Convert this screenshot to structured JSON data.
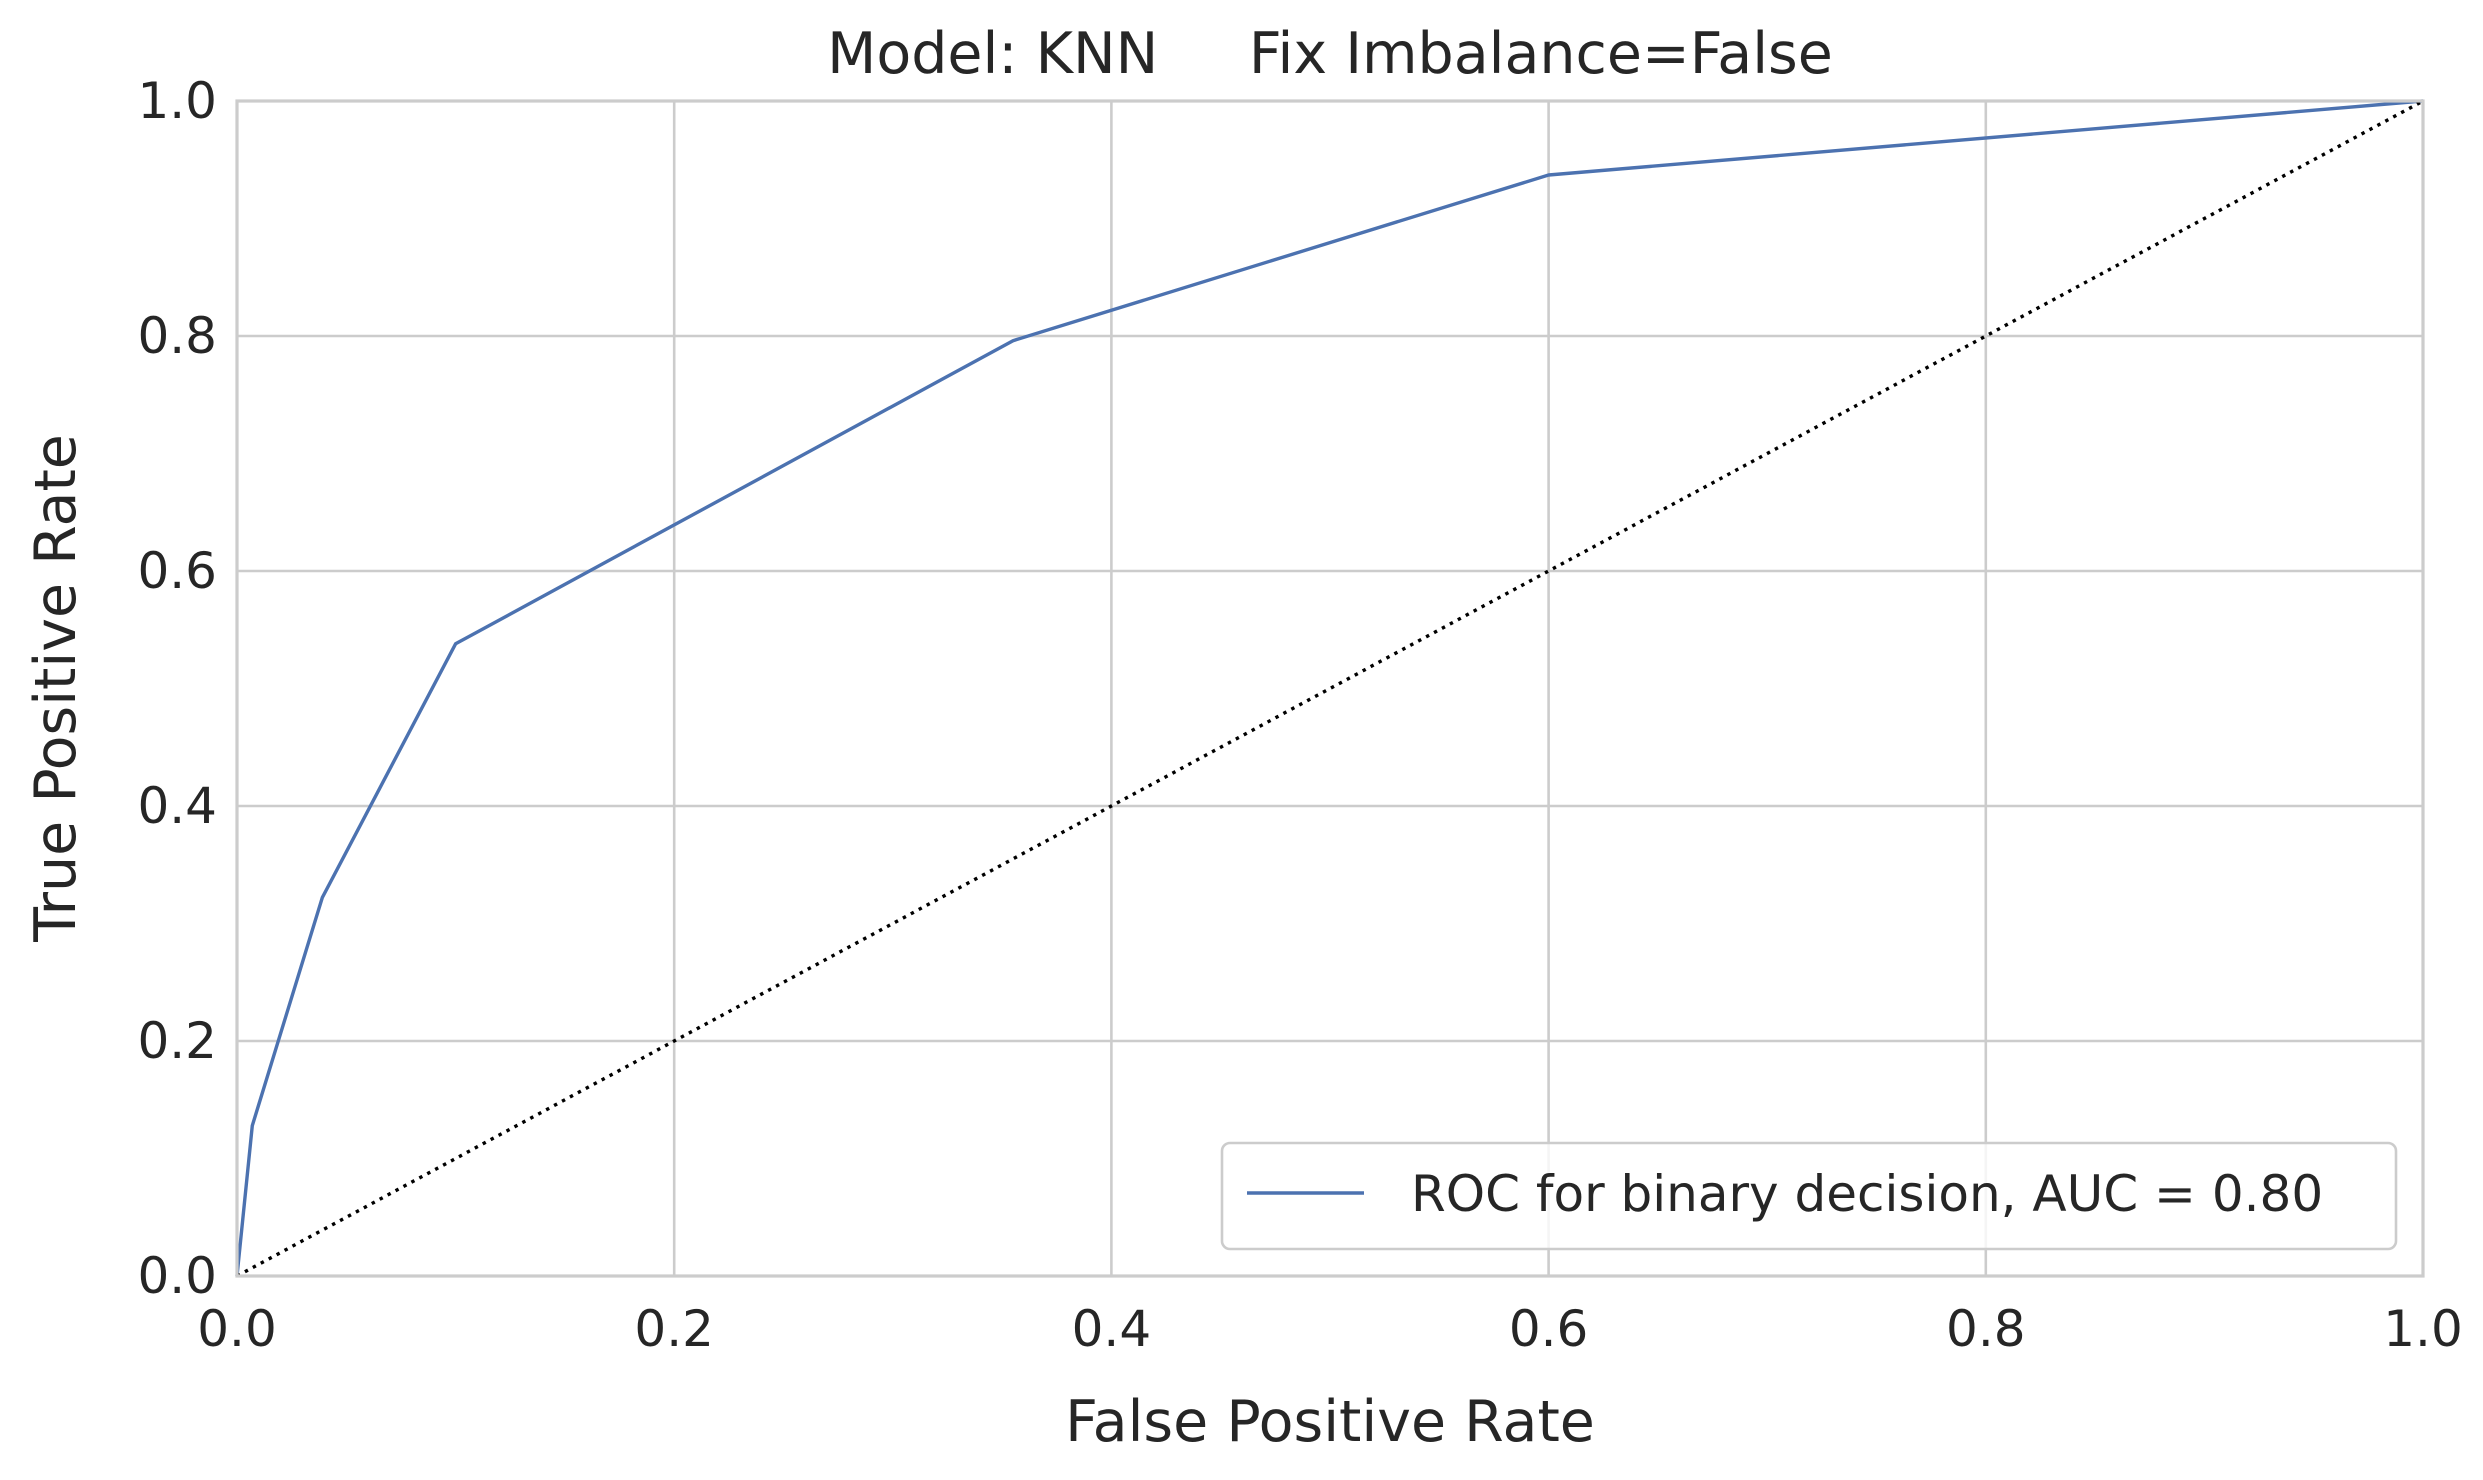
{
  "chart_data": {
    "type": "line",
    "title": "Model: KNN     Fix Imbalance=False",
    "xlabel": "False Positive Rate",
    "ylabel": "True Positive Rate",
    "xlim": [
      0.0,
      1.0
    ],
    "ylim": [
      0.0,
      1.0
    ],
    "xticks": [
      "0.0",
      "0.2",
      "0.4",
      "0.6",
      "0.8",
      "1.0"
    ],
    "yticks": [
      "0.0",
      "0.2",
      "0.4",
      "0.6",
      "0.8",
      "1.0"
    ],
    "grid": true,
    "legend_position": "lower-right",
    "series": [
      {
        "name": "ROC for binary decision, AUC = 0.80",
        "color": "#4c72b0",
        "style": "solid",
        "x": [
          0.0,
          0.007,
          0.039,
          0.1,
          0.355,
          0.6,
          1.0
        ],
        "y": [
          0.0,
          0.128,
          0.322,
          0.538,
          0.796,
          0.937,
          1.0
        ]
      },
      {
        "color": "#000000",
        "style": "dotted",
        "x": [
          0.0,
          1.0
        ],
        "y": [
          0.0,
          1.0
        ]
      }
    ]
  }
}
